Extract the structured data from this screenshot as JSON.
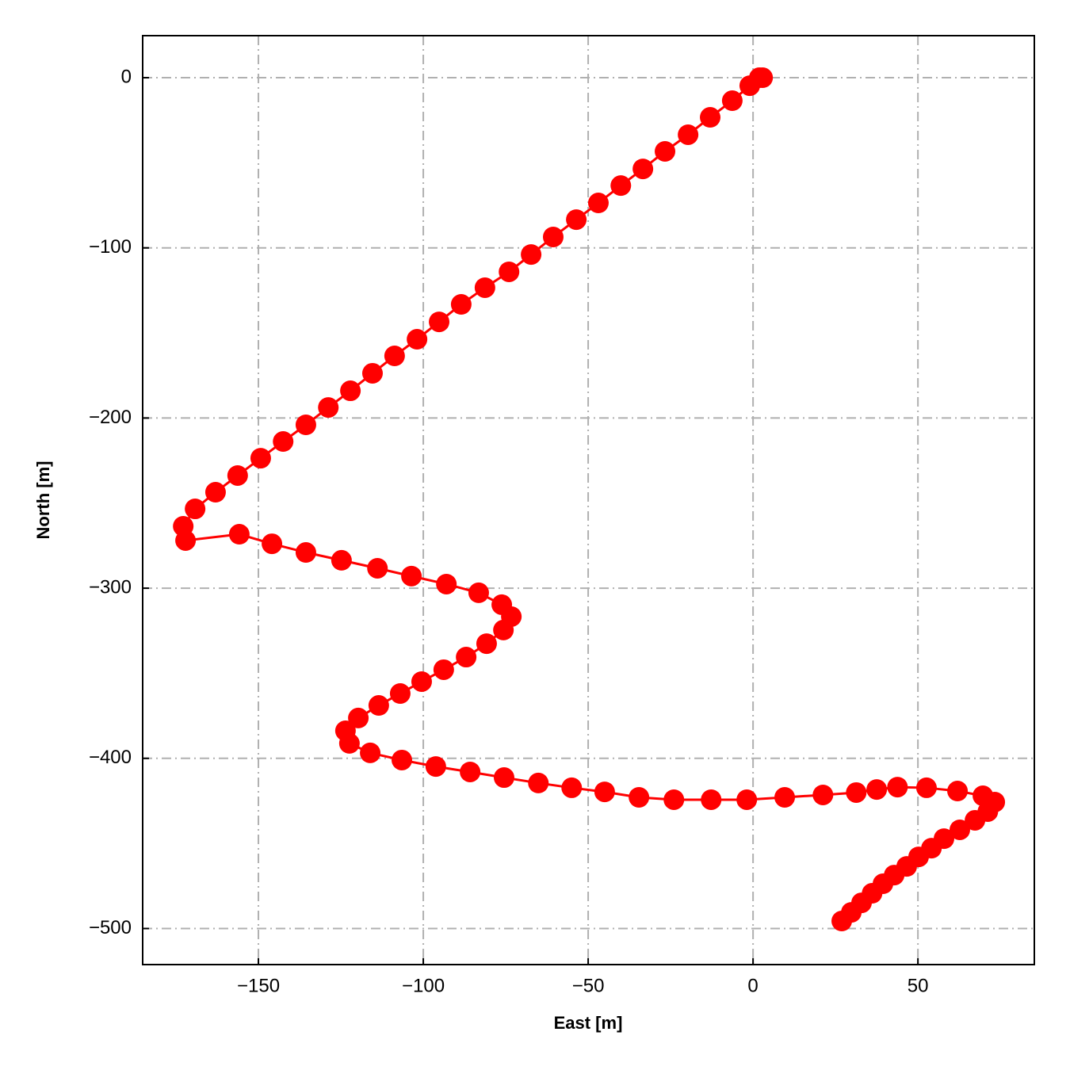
{
  "chart_data": {
    "type": "line",
    "xlabel": "East [m]",
    "ylabel": "North [m]",
    "color": "#ff0000",
    "grid": true,
    "xlim": [
      -185.1,
      85.3
    ],
    "ylim": [
      -521.2,
      24.7
    ],
    "xticks": [
      {
        "value": -150,
        "label": "−150"
      },
      {
        "value": -100,
        "label": "−100"
      },
      {
        "value": -50,
        "label": "−50"
      },
      0,
      50
    ],
    "yticks": [
      0,
      {
        "value": -100,
        "label": "−100"
      },
      {
        "value": -200,
        "label": "−200"
      },
      {
        "value": -300,
        "label": "−300"
      },
      {
        "value": -400,
        "label": "−400"
      },
      {
        "value": -500,
        "label": "−500"
      }
    ],
    "x": [
      2.9,
      1.9,
      -1.0,
      -6.3,
      -13.0,
      -19.7,
      -26.7,
      -33.4,
      -40.1,
      -46.9,
      -53.6,
      -60.6,
      -67.3,
      -74.0,
      -81.3,
      -88.5,
      -95.2,
      -101.9,
      -108.7,
      -115.4,
      -122.1,
      -128.8,
      -135.6,
      -142.5,
      -149.3,
      -156.3,
      -163.0,
      -169.2,
      -172.8,
      -172.1,
      -155.8,
      -145.9,
      -135.6,
      -124.8,
      -113.9,
      -103.6,
      -93.0,
      -83.2,
      -76.2,
      -73.3,
      -75.7,
      -80.8,
      -87.0,
      -93.8,
      -100.5,
      -107.0,
      -113.5,
      -119.7,
      -123.6,
      -122.4,
      -116.1,
      -106.5,
      -96.2,
      -85.8,
      -75.5,
      -65.1,
      -55.0,
      -45.0,
      -34.6,
      -24.0,
      -12.7,
      -1.9,
      9.6,
      21.2,
      31.3,
      37.5,
      43.8,
      52.6,
      62.0,
      69.7,
      73.3,
      71.2,
      67.3,
      62.7,
      57.9,
      54.1,
      50.2,
      46.6,
      42.8,
      39.4,
      36.1,
      32.9,
      29.8,
      26.9
    ],
    "values": [
      0,
      0,
      -4.7,
      -13.5,
      -23.3,
      -33.5,
      -43.3,
      -53.6,
      -63.4,
      -73.6,
      -83.4,
      -93.6,
      -103.9,
      -114.1,
      -123.4,
      -133.2,
      -143.5,
      -153.7,
      -163.5,
      -173.7,
      -184.0,
      -193.8,
      -204.0,
      -213.8,
      -223.6,
      -233.8,
      -243.6,
      -253.4,
      -263.6,
      -272.0,
      -268.3,
      -273.9,
      -279.0,
      -283.6,
      -288.3,
      -292.9,
      -297.6,
      -302.7,
      -309.7,
      -316.7,
      -324.6,
      -332.6,
      -340.5,
      -347.9,
      -354.9,
      -361.9,
      -368.9,
      -376.3,
      -383.8,
      -391.2,
      -396.8,
      -401.0,
      -404.8,
      -408.0,
      -411.3,
      -414.5,
      -417.3,
      -419.7,
      -422.9,
      -424.3,
      -424.3,
      -424.3,
      -422.9,
      -421.5,
      -420.1,
      -418.3,
      -416.9,
      -417.3,
      -419.2,
      -422.0,
      -425.7,
      -431.3,
      -436.4,
      -442.0,
      -447.2,
      -452.8,
      -457.9,
      -463.5,
      -468.6,
      -473.7,
      -479.3,
      -484.9,
      -490.5,
      -495.6
    ]
  }
}
